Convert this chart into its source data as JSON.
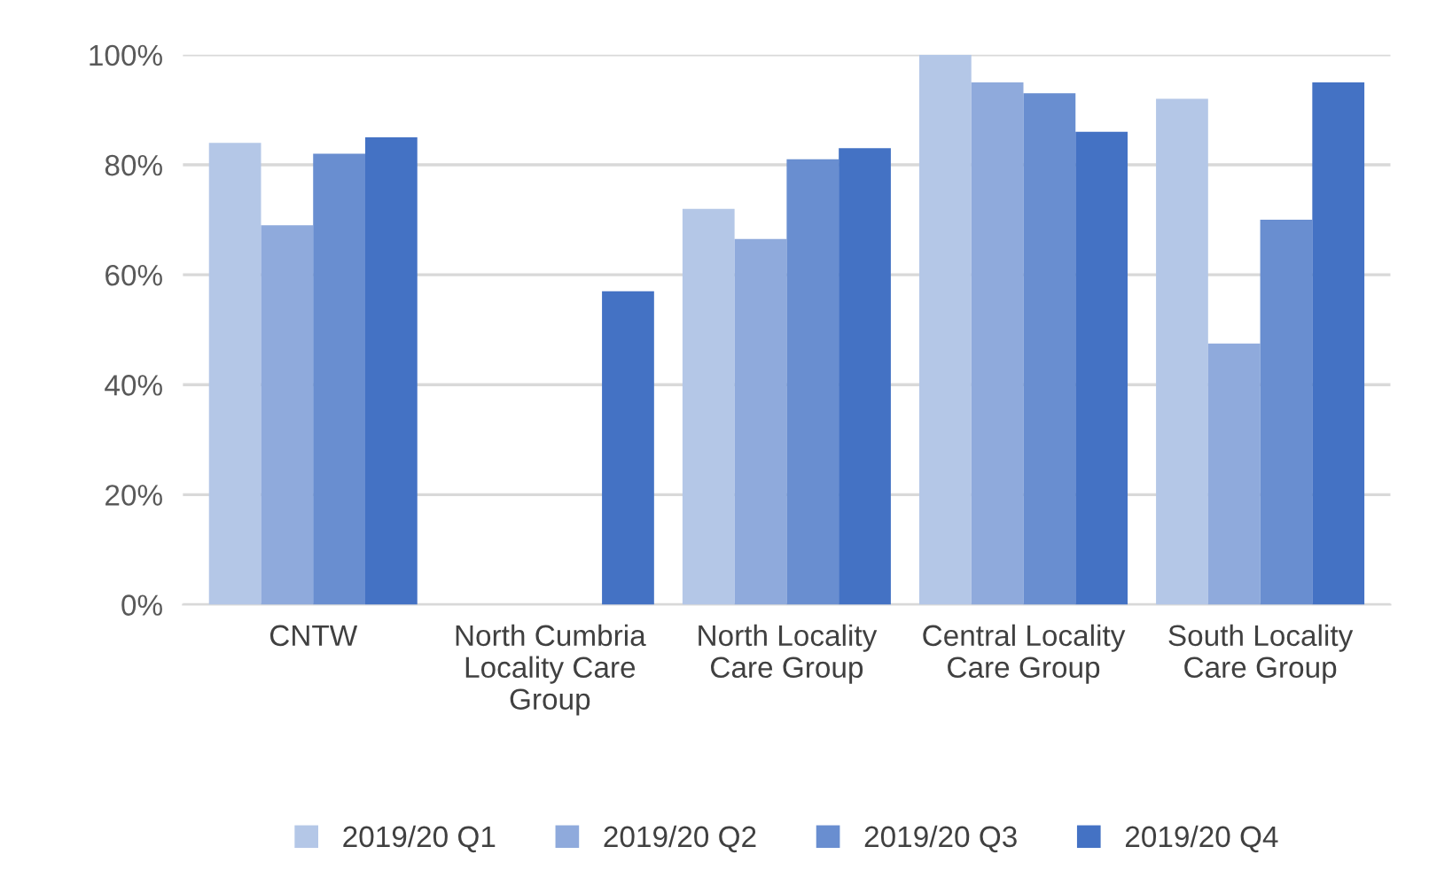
{
  "chart_data": {
    "type": "bar",
    "categories": [
      "CNTW",
      "North Cumbria\nLocality Care\nGroup",
      "North Locality\nCare Group",
      "Central Locality\nCare Group",
      "South Locality\nCare Group"
    ],
    "series": [
      {
        "name": "2019/20 Q1",
        "color": "#b4c7e7",
        "values": [
          84,
          null,
          72,
          100,
          92
        ]
      },
      {
        "name": "2019/20 Q2",
        "color": "#8faadc",
        "values": [
          69,
          null,
          66.5,
          95,
          47.5
        ]
      },
      {
        "name": "2019/20 Q3",
        "color": "#698ed0",
        "values": [
          82,
          null,
          81,
          93,
          70
        ]
      },
      {
        "name": "2019/20 Q4",
        "color": "#4472c4",
        "values": [
          85,
          57,
          83,
          86,
          95
        ]
      }
    ],
    "ylim": [
      0,
      100
    ],
    "yticks": [
      {
        "value": 0,
        "label": "0%"
      },
      {
        "value": 20,
        "label": "20%"
      },
      {
        "value": 40,
        "label": "40%"
      },
      {
        "value": 60,
        "label": "60%"
      },
      {
        "value": 80,
        "label": "80%"
      },
      {
        "value": 100,
        "label": "100%"
      }
    ],
    "grid": "y",
    "legend": "bottom"
  }
}
